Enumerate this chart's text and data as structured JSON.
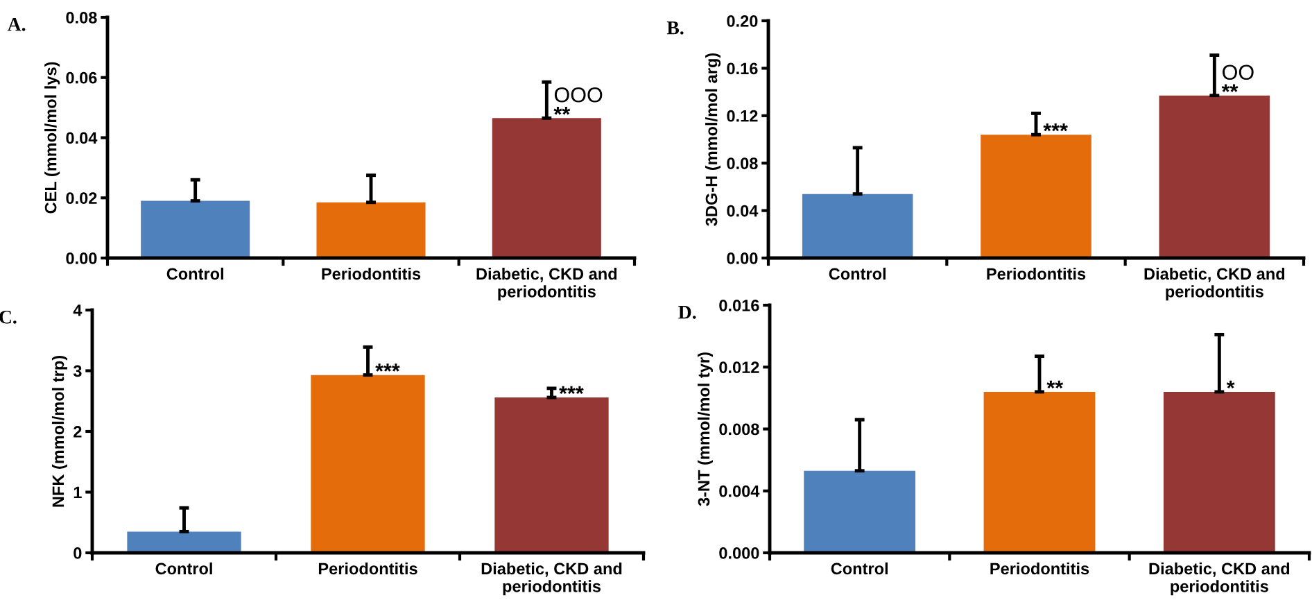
{
  "chart_data": [
    {
      "type": "bar",
      "title": "A.",
      "ylabel": "CEL (mmol/mol lys)",
      "categories": [
        "Control",
        "Periodontitis",
        "Diabetic, CKD and\nperiodontitis"
      ],
      "values": [
        0.019,
        0.0185,
        0.0465
      ],
      "colors": [
        "#4f81bd",
        "#e46c0a",
        "#953735"
      ],
      "errors": [
        [
          0.019,
          0.026
        ],
        [
          0.0185,
          0.0275
        ],
        [
          0.0465,
          0.0585
        ]
      ],
      "ylim": [
        0,
        0.08
      ],
      "yticks": [
        {
          "value": 0,
          "label": "0.00"
        },
        {
          "value": 0.02,
          "label": "0.02"
        },
        {
          "value": 0.04,
          "label": "0.04"
        },
        {
          "value": 0.06,
          "label": "0.06"
        },
        {
          "value": 0.08,
          "label": "0.08"
        }
      ],
      "grid": false,
      "legend": false,
      "annotations": [
        {
          "text": "**",
          "x": "Diabetic, CKD and\nperiodontitis",
          "y": 0.0465
        },
        {
          "text": "OOO",
          "x": "Diabetic, CKD and\nperiodontitis",
          "y": 0.0465
        }
      ]
    },
    {
      "type": "bar",
      "title": "B.",
      "ylabel": "3DG-H (mmol/mol arg)",
      "categories": [
        "Control",
        "Periodontitis",
        "Diabetic, CKD and\nperiodontitis"
      ],
      "values": [
        0.054,
        0.104,
        0.137
      ],
      "colors": [
        "#4f81bd",
        "#e46c0a",
        "#953735"
      ],
      "errors": [
        [
          0.054,
          0.093
        ],
        [
          0.104,
          0.122
        ],
        [
          0.137,
          0.171
        ]
      ],
      "ylim": [
        0,
        0.2
      ],
      "yticks": [
        {
          "value": 0,
          "label": "0.00"
        },
        {
          "value": 0.04,
          "label": "0.04"
        },
        {
          "value": 0.08,
          "label": "0.08"
        },
        {
          "value": 0.12,
          "label": "0.12"
        },
        {
          "value": 0.16,
          "label": "0.16"
        },
        {
          "value": 0.2,
          "label": "0.20"
        }
      ],
      "grid": false,
      "legend": false,
      "annotations": [
        {
          "text": "***",
          "x": "Periodontitis",
          "y": 0.104
        },
        {
          "text": "**",
          "x": "Diabetic, CKD and\nperiodontitis",
          "y": 0.137
        },
        {
          "text": "OO",
          "x": "Diabetic, CKD and\nperiodontitis",
          "y": 0.137
        }
      ]
    },
    {
      "type": "bar",
      "title": "C.",
      "ylabel": "NFK (mmol/mol trp)",
      "categories": [
        "Control",
        "Periodontitis",
        "Diabetic, CKD and\nperiodontitis"
      ],
      "values": [
        0.35,
        2.93,
        2.56
      ],
      "colors": [
        "#4f81bd",
        "#e46c0a",
        "#953735"
      ],
      "errors": [
        [
          0.35,
          0.74
        ],
        [
          2.93,
          3.39
        ],
        [
          2.56,
          2.71
        ]
      ],
      "ylim": [
        0,
        4
      ],
      "yticks": [
        0,
        1,
        2,
        3,
        4
      ],
      "grid": false,
      "legend": false,
      "annotations": [
        {
          "text": "***",
          "x": "Periodontitis",
          "y": 2.93
        },
        {
          "text": "***",
          "x": "Diabetic, CKD and\nperiodontitis",
          "y": 2.56
        }
      ]
    },
    {
      "type": "bar",
      "title": "D.",
      "ylabel": "3-NT (mmol/mol tyr)",
      "categories": [
        "Control",
        "Periodontitis",
        "Diabetic, CKD and\nperiodontitis"
      ],
      "values": [
        0.0053,
        0.0104,
        0.0104
      ],
      "colors": [
        "#4f81bd",
        "#e46c0a",
        "#953735"
      ],
      "errors": [
        [
          0.0053,
          0.0086
        ],
        [
          0.0104,
          0.0127
        ],
        [
          0.0104,
          0.0141
        ]
      ],
      "ylim": [
        0,
        0.016
      ],
      "yticks": [
        {
          "value": 0,
          "label": "0.000"
        },
        {
          "value": 0.004,
          "label": "0.004"
        },
        {
          "value": 0.008,
          "label": "0.008"
        },
        {
          "value": 0.012,
          "label": "0.012"
        },
        {
          "value": 0.016,
          "label": "0.016"
        }
      ],
      "grid": false,
      "legend": false,
      "annotations": [
        {
          "text": "**",
          "x": "Periodontitis",
          "y": 0.0104
        },
        {
          "text": "*",
          "x": "Diabetic, CKD and\nperiodontitis",
          "y": 0.0104
        }
      ]
    }
  ]
}
